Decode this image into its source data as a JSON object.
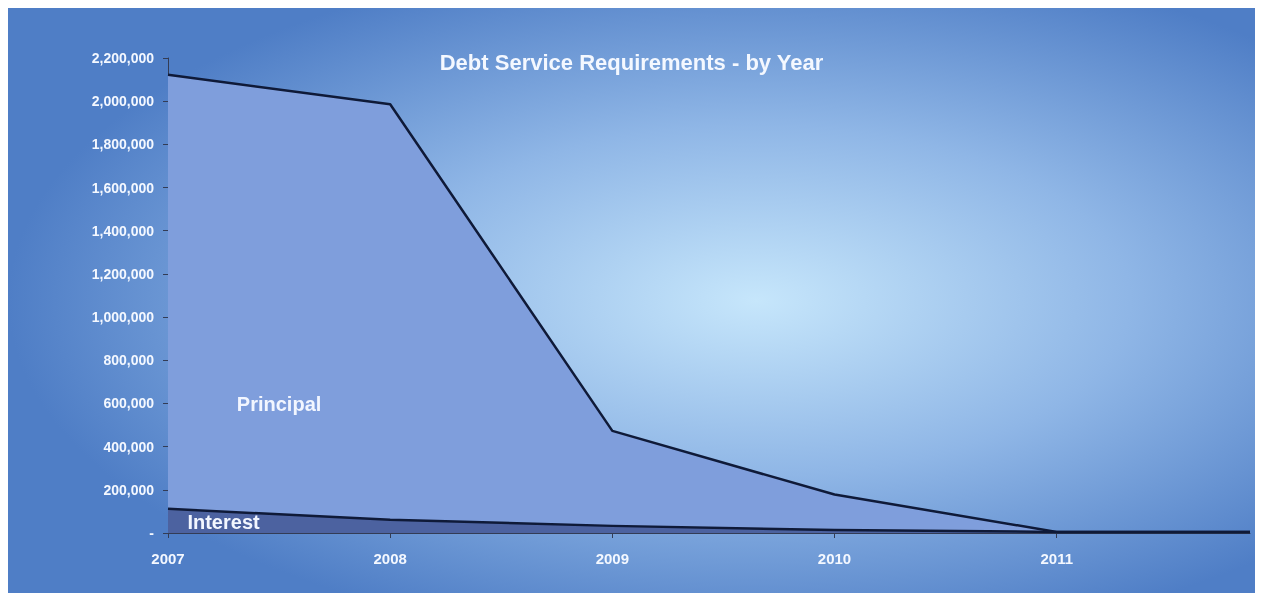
{
  "chart_data": {
    "type": "area",
    "title": "Debt Service Requirements - by Year",
    "x": [
      2007,
      2008,
      2009,
      2010,
      2011,
      2011.87
    ],
    "series": [
      {
        "name": "Principal",
        "color": "#7f9edc",
        "values": [
          2122000,
          1986000,
          473000,
          178000,
          5000,
          5000
        ]
      },
      {
        "name": "Interest",
        "color": "#4c62a0",
        "values": [
          112000,
          61000,
          33000,
          14000,
          5000,
          5000
        ]
      }
    ],
    "xlim": [
      2007,
      2011.87
    ],
    "xticks": [
      2007,
      2008,
      2009,
      2010,
      2011
    ],
    "ylim": [
      0,
      2200000
    ],
    "yticks": [
      {
        "value": 0,
        "label": "-"
      },
      {
        "value": 200000,
        "label": "200,000"
      },
      {
        "value": 400000,
        "label": "400,000"
      },
      {
        "value": 600000,
        "label": "600,000"
      },
      {
        "value": 800000,
        "label": "800,000"
      },
      {
        "value": 1000000,
        "label": "1,000,000"
      },
      {
        "value": 1200000,
        "label": "1,200,000"
      },
      {
        "value": 1400000,
        "label": "1,400,000"
      },
      {
        "value": 1600000,
        "label": "1,600,000"
      },
      {
        "value": 1800000,
        "label": "1,800,000"
      },
      {
        "value": 2000000,
        "label": "2,000,000"
      },
      {
        "value": 2200000,
        "label": "2,200,000"
      }
    ],
    "grid": false,
    "legend": false
  }
}
